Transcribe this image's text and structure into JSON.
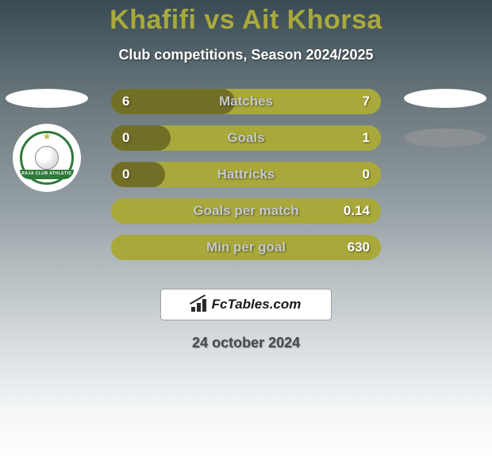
{
  "title": {
    "text": "Khafifi vs Ait Khorsa",
    "color": "#a9a93b",
    "fontsize": 34
  },
  "subtitle": {
    "text": "Club competitions, Season 2024/2025",
    "color": "#ffffff",
    "fontsize": 18
  },
  "left_player": {
    "ellipse_color": "#ffffff",
    "club_circle_bg": "#ffffff",
    "club_border_color": "#2e7a3a",
    "club_star_color": "#c9b846",
    "club_band_text": "RAJA CLUB ATHLETIC",
    "club_band_text_color": "#ffffff"
  },
  "right_player": {
    "ellipse_color_1": "#ffffff",
    "ellipse_color_2": "#8a9094"
  },
  "bars": {
    "track_color": "#a9a93b",
    "fill_color": "#716f26",
    "text_color": "#ffffff",
    "label_color": "#c5c8ca",
    "height": 32,
    "radius": 16,
    "gap": 14,
    "items": [
      {
        "label": "Matches",
        "left": "6",
        "right": "7",
        "fill_pct": 46
      },
      {
        "label": "Goals",
        "left": "0",
        "right": "1",
        "fill_pct": 22
      },
      {
        "label": "Hattricks",
        "left": "0",
        "right": "0",
        "fill_pct": 20
      },
      {
        "label": "Goals per match",
        "left": "",
        "right": "0.14",
        "fill_pct": 0
      },
      {
        "label": "Min per goal",
        "left": "",
        "right": "630",
        "fill_pct": 0
      }
    ]
  },
  "brand": {
    "box_bg": "#ffffff",
    "box_border": "#9aa0a4",
    "text": "FcTables.com",
    "text_color": "#1a1a1a"
  },
  "date": {
    "text": "24 october 2024",
    "color": "#4a4a4a",
    "fontsize": 18
  },
  "background": {
    "gradient_top": "#3a4a52",
    "gradient_bottom": "#ffffff"
  }
}
